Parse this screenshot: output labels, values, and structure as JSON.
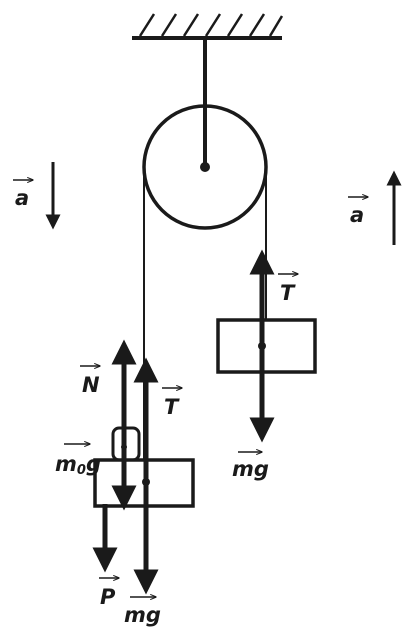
{
  "diagram": {
    "labels": {
      "accel_left": "a",
      "accel_right": "a",
      "tension_right": "T",
      "weight_right": "mg",
      "normal_left": "N",
      "tension_left": "T",
      "weight_small_main": "m",
      "weight_small_sub": "0",
      "weight_small_tail": "g",
      "pressure": "P",
      "weight_left": "mg"
    },
    "colors": {
      "ink": "#1a1a1a",
      "background": "#ffffff"
    }
  }
}
